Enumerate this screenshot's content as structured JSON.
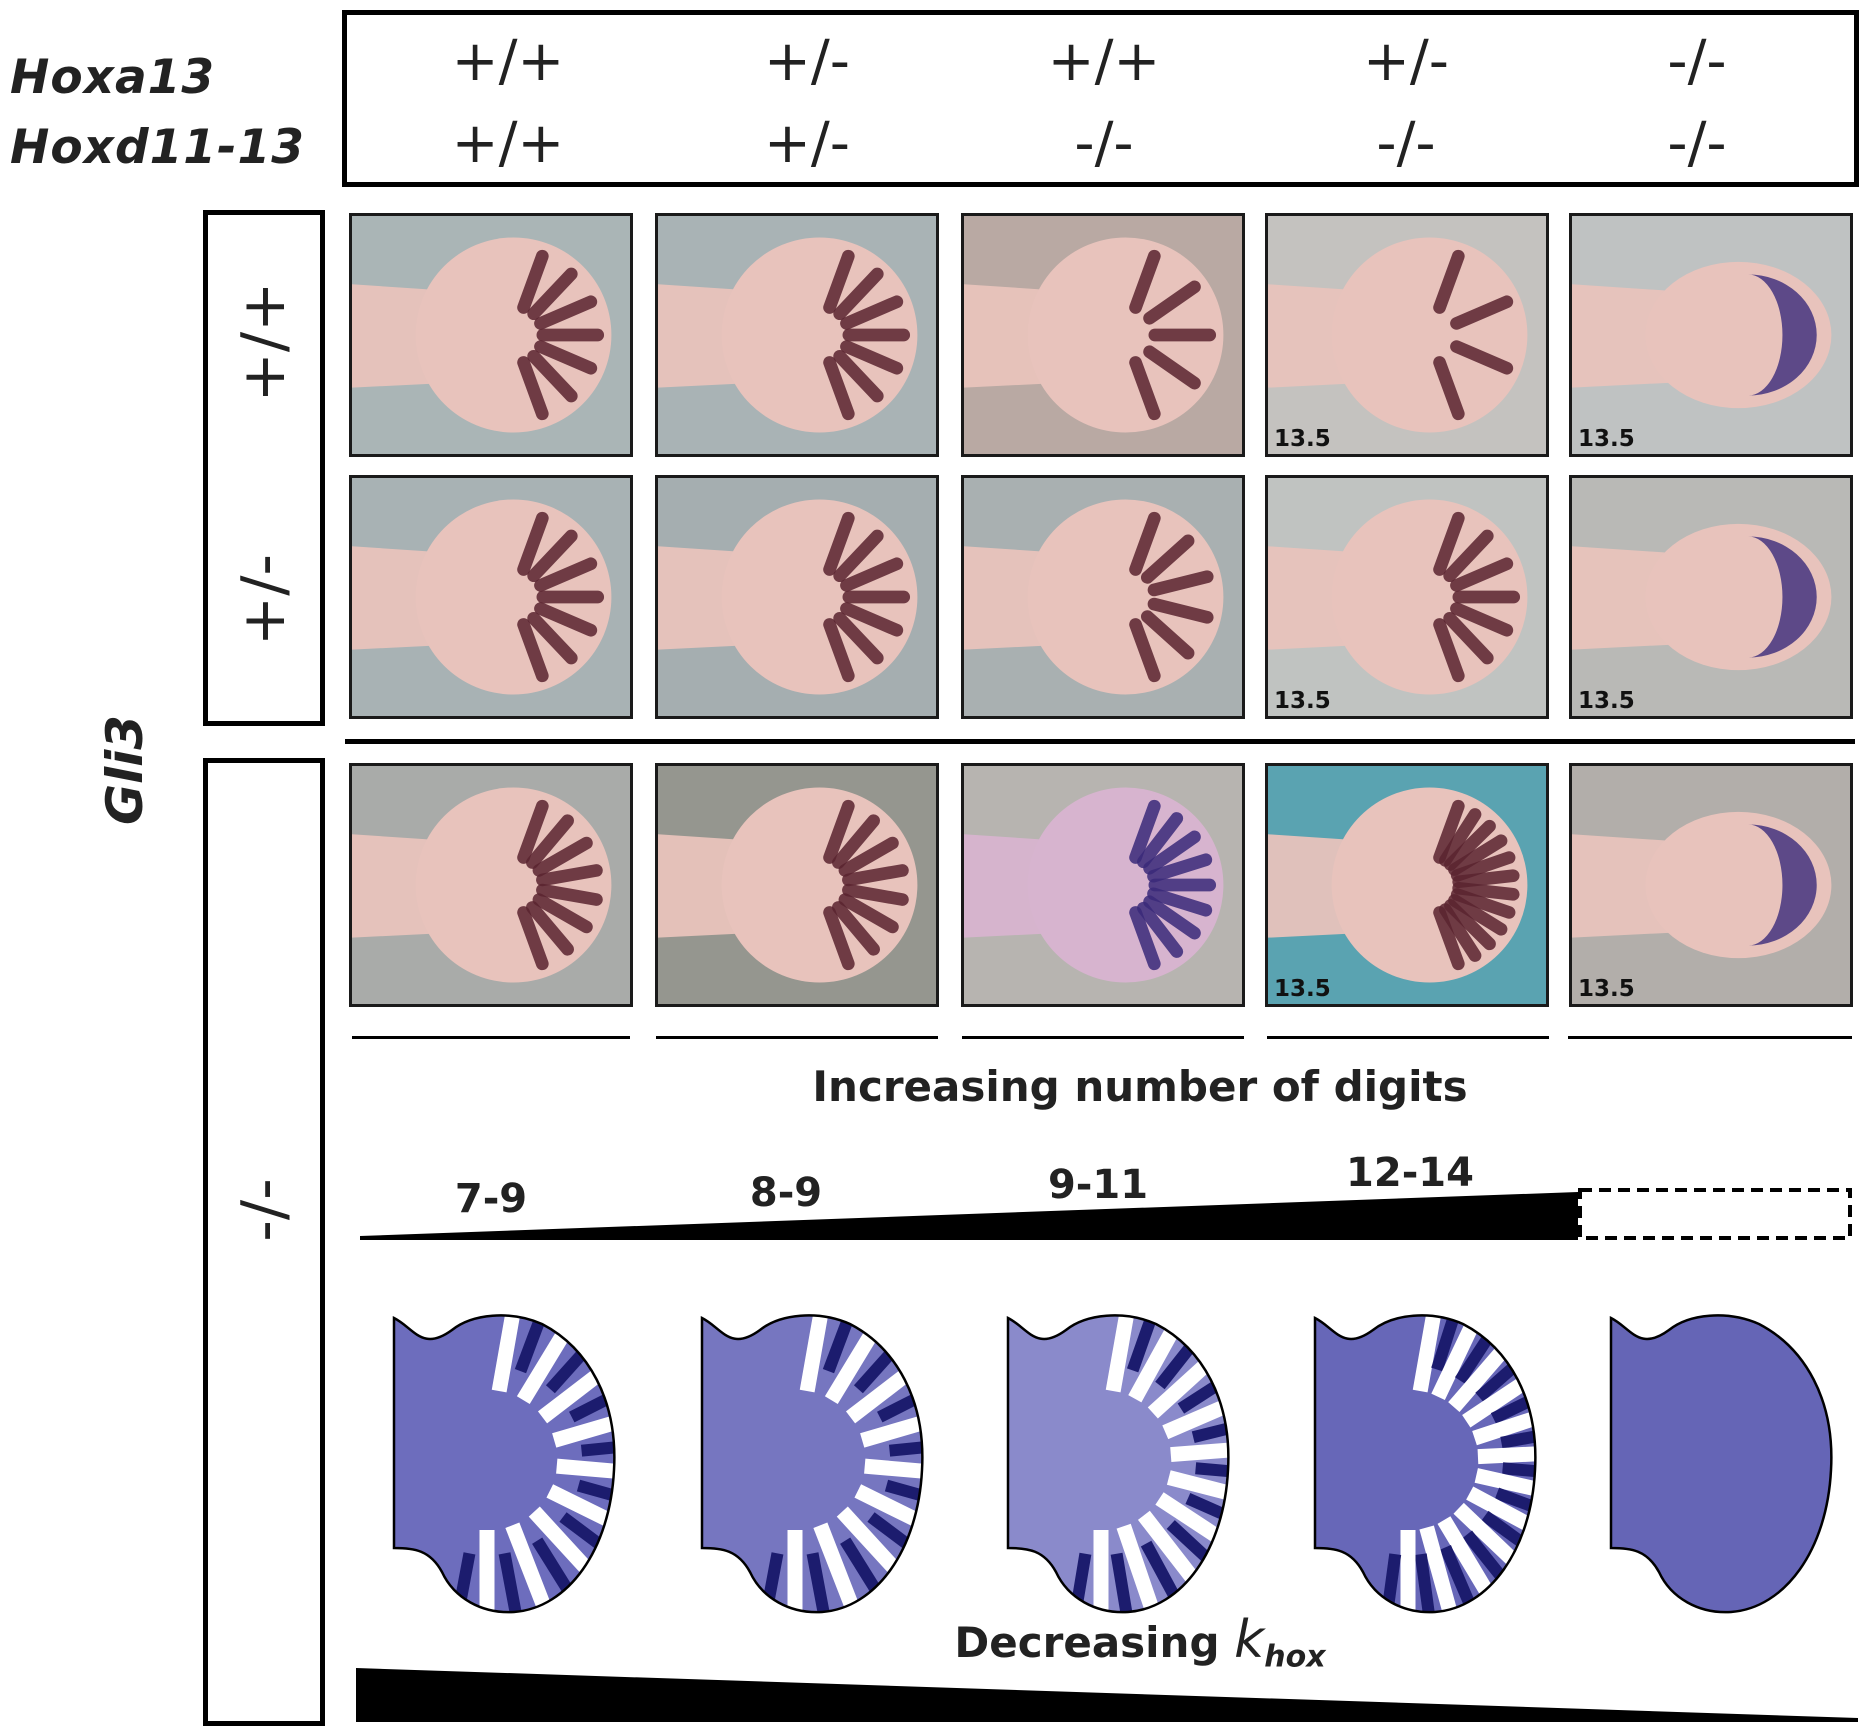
{
  "genes": {
    "hoxa13": "Hoxa13",
    "hoxd": "Hoxd11-13",
    "gli3": "Gli3"
  },
  "columns": [
    {
      "hoxa13": "+/+",
      "hoxd": "+/+"
    },
    {
      "hoxa13": "+/-",
      "hoxd": "+/-"
    },
    {
      "hoxa13": "+/+",
      "hoxd": "-/-"
    },
    {
      "hoxa13": "+/-",
      "hoxd": "-/-"
    },
    {
      "hoxa13": "-/-",
      "hoxd": "-/-"
    }
  ],
  "rows": [
    {
      "gli3": "+/+"
    },
    {
      "gli3": "+/-"
    },
    {
      "gli3": "-/-"
    }
  ],
  "stage_label": "13.5",
  "digits_heading": "Increasing number of digits",
  "digit_ranges": [
    "7-9",
    "8-9",
    "9-11",
    "12-14"
  ],
  "khox_heading": {
    "prefix": "Decreasing ",
    "symbol": "k",
    "subscript": "hox"
  },
  "colors": {
    "stain_red": "#5a2430",
    "stain_blue": "#3a2a7a",
    "sim_fill": "#6a6ab8",
    "sim_stripe": "#1c1c6e"
  }
}
